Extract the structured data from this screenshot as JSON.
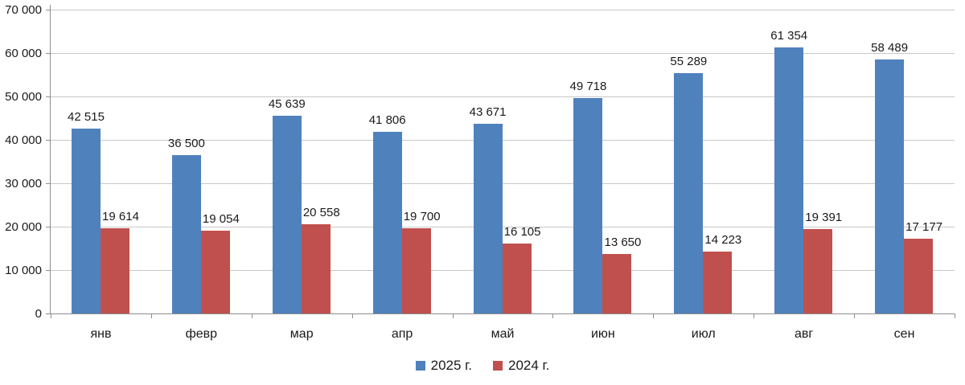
{
  "chart_data": {
    "type": "bar",
    "title": "",
    "xlabel": "",
    "ylabel": "",
    "categories": [
      "янв",
      "февр",
      "мар",
      "апр",
      "май",
      "июн",
      "июл",
      "авг",
      "сен"
    ],
    "series": [
      {
        "name": "2025 г.",
        "color": "#4f81bd",
        "values": [
          42515,
          36500,
          45639,
          41806,
          43671,
          49718,
          55289,
          61354,
          58489
        ]
      },
      {
        "name": "2024 г.",
        "color": "#c0504d",
        "values": [
          19614,
          19054,
          20558,
          19700,
          16105,
          13650,
          14223,
          19391,
          17177
        ]
      }
    ],
    "ylim": [
      0,
      70000
    ],
    "y_tick_step": 10000,
    "y_tick_labels": [
      "0",
      "10 000",
      "20 000",
      "30 000",
      "40 000",
      "50 000",
      "60 000",
      "70 000"
    ],
    "grid": true,
    "data_labels": true,
    "legend_position": "bottom-center"
  },
  "colors": {
    "background": "#ffffff",
    "gridline": "#c8c8c8",
    "axis": "#8e8e8e",
    "text": "#1a1a1a",
    "series_2025": "#4f81bd",
    "series_2024": "#c0504d"
  }
}
